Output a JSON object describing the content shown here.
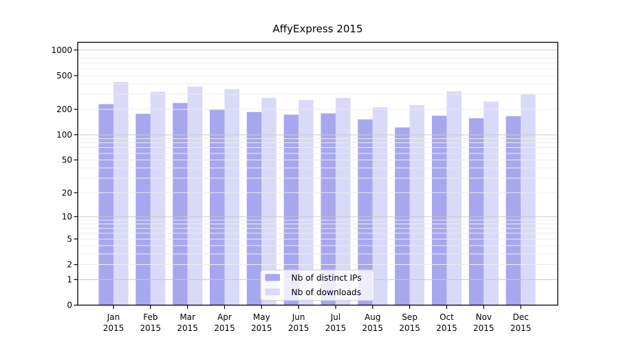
{
  "chart_data": {
    "type": "bar",
    "title": "AffyExpress 2015",
    "xlabel": "",
    "ylabel": "",
    "categories": [
      "Jan",
      "Feb",
      "Mar",
      "Apr",
      "May",
      "Jun",
      "Jul",
      "Aug",
      "Sep",
      "Oct",
      "Nov",
      "Dec"
    ],
    "year_label": "2015",
    "series": [
      {
        "name": "Nb of distinct IPs",
        "color": "#a7a7ef",
        "values": [
          230,
          177,
          238,
          201,
          186,
          173,
          179,
          152,
          122,
          168,
          157,
          166
        ]
      },
      {
        "name": "Nb of downloads",
        "color": "#d9d9f8",
        "values": [
          420,
          322,
          371,
          345,
          273,
          258,
          273,
          210,
          224,
          326,
          247,
          305
        ]
      }
    ],
    "yscale": "log1p",
    "ylim": [
      0,
      1000
    ],
    "yticks": [
      0,
      1,
      2,
      5,
      10,
      20,
      50,
      100,
      200,
      500,
      1000
    ],
    "grid": true,
    "legend_position": "lower-center-inside"
  },
  "colors": {
    "background": "#ffffff",
    "grid_major": "#c9c9c9",
    "grid_minor": "#ececec",
    "axis": "#000000",
    "legend_border": "#cccccc",
    "legend_background": "rgba(255,255,255,0.78)"
  }
}
